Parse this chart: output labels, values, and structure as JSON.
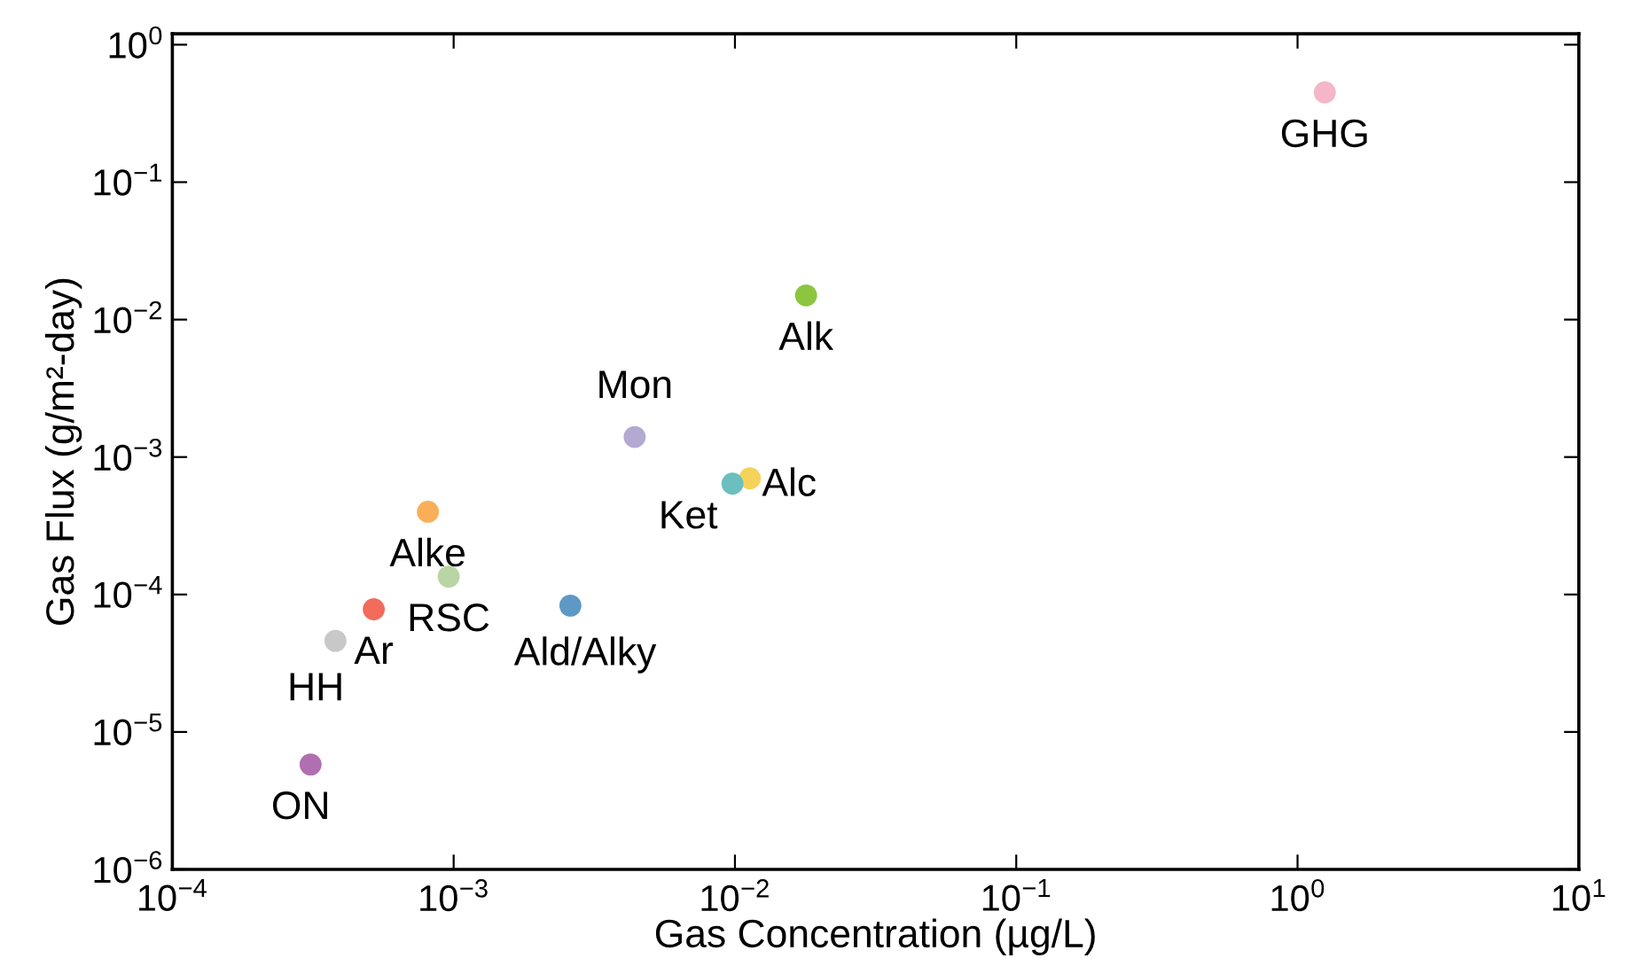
{
  "chart_data": {
    "type": "scatter",
    "xlabel": "Gas Concentration (µg/L)",
    "ylabel": "Gas Flux (g/m²-day)",
    "log": "xy",
    "x": [
      1.25,
      0.0179,
      0.0044,
      0.0113,
      0.0098,
      0.00081,
      0.00096,
      0.0026,
      0.00052,
      0.00038,
      0.00031
    ],
    "values": [
      0.45,
      0.015,
      0.0014,
      0.0007,
      0.00064,
      0.0004,
      0.000135,
      8.3e-05,
      7.8e-05,
      4.6e-05,
      5.8e-06
    ],
    "colors": [
      "#f4b6c8",
      "#8cc63e",
      "#b3a9d1",
      "#f5d35a",
      "#6cbfbf",
      "#f9ae57",
      "#b9d5a4",
      "#5e98c5",
      "#f26b5b",
      "#c8c8c8",
      "#b06fb1"
    ],
    "marker": "circle",
    "grid": false,
    "legend": false,
    "xlim": [
      0.0001,
      10
    ],
    "ylim": [
      1e-06,
      1.2
    ],
    "xticks": [
      {
        "value": 0.0001,
        "label": "10$^{−4}$"
      },
      {
        "value": 0.001,
        "label": "10$^{−3}$"
      },
      {
        "value": 0.01,
        "label": "10$^{−2}$"
      },
      {
        "value": 0.1,
        "label": "10$^{−1}$"
      },
      {
        "value": 1,
        "label": "10$^{0}$"
      },
      {
        "value": 10,
        "label": "10$^{1}$"
      }
    ],
    "yticks": [
      {
        "value": 1e-06,
        "label": "10$^{−6}$"
      },
      {
        "value": 1e-05,
        "label": "10$^{−5}$"
      },
      {
        "value": 0.0001,
        "label": "10$^{−4}$"
      },
      {
        "value": 0.001,
        "label": "10$^{−3}$"
      },
      {
        "value": 0.01,
        "label": "10$^{−2}$"
      },
      {
        "value": 0.1,
        "label": "10$^{−1}$"
      },
      {
        "value": 1,
        "label": "10$^{0}$"
      }
    ],
    "annotations": [
      {
        "text": "GHG",
        "x": 1.25,
        "y": 0.45
      },
      {
        "text": "Alk",
        "x": 0.0179,
        "y": 0.015
      },
      {
        "text": "Mon",
        "x": 0.0044,
        "y": 0.0014
      },
      {
        "text": "Alc",
        "x": 0.0113,
        "y": 0.0007
      },
      {
        "text": "Ket",
        "x": 0.0098,
        "y": 0.00064
      },
      {
        "text": "Alke",
        "x": 0.00081,
        "y": 0.0004
      },
      {
        "text": "RSC",
        "x": 0.00096,
        "y": 0.000135
      },
      {
        "text": "Ald/Alky",
        "x": 0.0026,
        "y": 8.3e-05
      },
      {
        "text": "Ar",
        "x": 0.00052,
        "y": 7.8e-05
      },
      {
        "text": "HH",
        "x": 0.00038,
        "y": 4.6e-05
      },
      {
        "text": "ON",
        "x": 0.00031,
        "y": 5.8e-06
      }
    ]
  }
}
